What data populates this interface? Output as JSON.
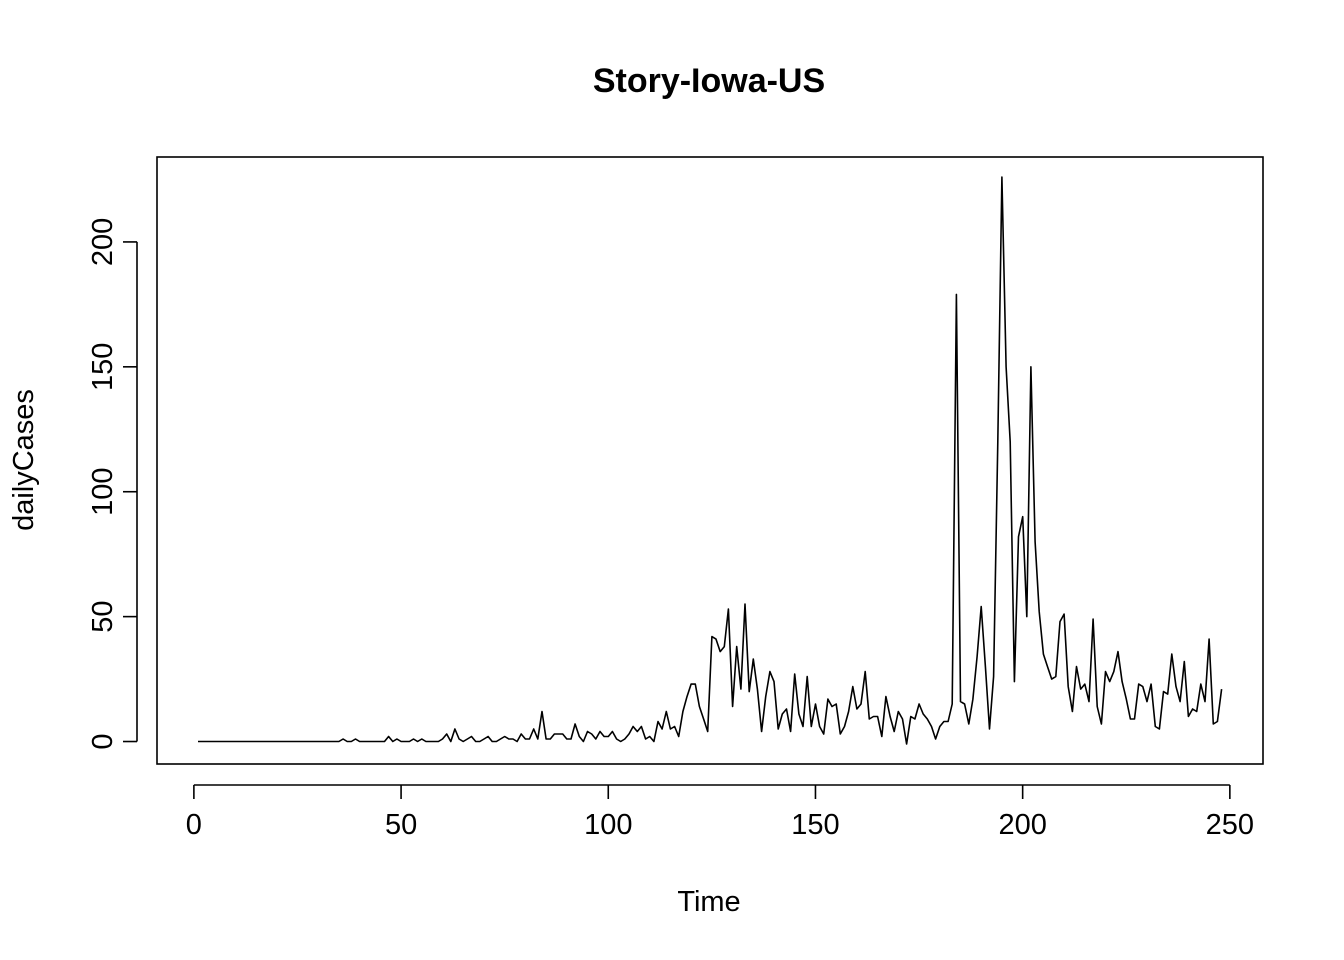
{
  "chart_data": {
    "type": "line",
    "title": "Story-Iowa-US",
    "xlabel": "Time",
    "ylabel": "dailyCases",
    "xlim": [
      -8.9,
      258
    ],
    "ylim": [
      -9,
      234
    ],
    "xticks": [
      0,
      50,
      100,
      150,
      200,
      250
    ],
    "yticks": [
      0,
      50,
      100,
      150,
      200
    ],
    "grid": false,
    "legend": "none",
    "series": [
      {
        "color": "#000000",
        "x": [
          1,
          2,
          3,
          4,
          5,
          6,
          7,
          8,
          9,
          10,
          11,
          12,
          13,
          14,
          15,
          16,
          17,
          18,
          19,
          20,
          21,
          22,
          23,
          24,
          25,
          26,
          27,
          28,
          29,
          30,
          31,
          32,
          33,
          34,
          35,
          36,
          37,
          38,
          39,
          40,
          41,
          42,
          43,
          44,
          45,
          46,
          47,
          48,
          49,
          50,
          51,
          52,
          53,
          54,
          55,
          56,
          57,
          58,
          59,
          60,
          61,
          62,
          63,
          64,
          65,
          66,
          67,
          68,
          69,
          70,
          71,
          72,
          73,
          74,
          75,
          76,
          77,
          78,
          79,
          80,
          81,
          82,
          83,
          84,
          85,
          86,
          87,
          88,
          89,
          90,
          91,
          92,
          93,
          94,
          95,
          96,
          97,
          98,
          99,
          100,
          101,
          102,
          103,
          104,
          105,
          106,
          107,
          108,
          109,
          110,
          111,
          112,
          113,
          114,
          115,
          116,
          117,
          118,
          119,
          120,
          121,
          122,
          123,
          124,
          125,
          126,
          127,
          128,
          129,
          130,
          131,
          132,
          133,
          134,
          135,
          136,
          137,
          138,
          139,
          140,
          141,
          142,
          143,
          144,
          145,
          146,
          147,
          148,
          149,
          150,
          151,
          152,
          153,
          154,
          155,
          156,
          157,
          158,
          159,
          160,
          161,
          162,
          163,
          164,
          165,
          166,
          167,
          168,
          169,
          170,
          171,
          172,
          173,
          174,
          175,
          176,
          177,
          178,
          179,
          180,
          181,
          182,
          183,
          184,
          185,
          186,
          187,
          188,
          189,
          190,
          191,
          192,
          193,
          194,
          195,
          196,
          197,
          198,
          199,
          200,
          201,
          202,
          203,
          204,
          205,
          206,
          207,
          208,
          209,
          210,
          211,
          212,
          213,
          214,
          215,
          216,
          217,
          218,
          219,
          220,
          221,
          222,
          223,
          224,
          225,
          226,
          227,
          228,
          229,
          230,
          231,
          232,
          233,
          234,
          235,
          236,
          237,
          238,
          239,
          240,
          241,
          242,
          243,
          244,
          245,
          246,
          247,
          248
        ],
        "values": [
          0,
          0,
          0,
          0,
          0,
          0,
          0,
          0,
          0,
          0,
          0,
          0,
          0,
          0,
          0,
          0,
          0,
          0,
          0,
          0,
          0,
          0,
          0,
          0,
          0,
          0,
          0,
          0,
          0,
          0,
          0,
          0,
          0,
          0,
          0,
          1,
          0,
          0,
          1,
          0,
          0,
          0,
          0,
          0,
          0,
          0,
          2,
          0,
          1,
          0,
          0,
          0,
          1,
          0,
          1,
          0,
          0,
          0,
          0,
          1,
          3,
          0,
          5,
          1,
          0,
          1,
          2,
          0,
          0,
          1,
          2,
          0,
          0,
          1,
          2,
          1,
          1,
          0,
          3,
          1,
          1,
          5,
          1,
          12,
          1,
          1,
          3,
          3,
          3,
          1,
          1,
          7,
          2,
          0,
          4,
          3,
          1,
          4,
          2,
          2,
          4,
          1,
          0,
          1,
          3,
          6,
          4,
          6,
          1,
          2,
          0,
          8,
          5,
          12,
          5,
          6,
          2,
          12,
          18,
          23,
          23,
          14,
          9,
          4,
          42,
          41,
          36,
          38,
          53,
          14,
          38,
          21,
          55,
          20,
          33,
          21,
          4,
          18,
          28,
          24,
          5,
          11,
          13,
          4,
          27,
          11,
          6,
          26,
          6,
          15,
          6,
          3,
          17,
          14,
          15,
          3,
          6,
          12,
          22,
          13,
          15,
          28,
          9,
          10,
          10,
          2,
          18,
          10,
          4,
          12,
          9,
          -1,
          10,
          9,
          15,
          11,
          9,
          6,
          1,
          6,
          8,
          8,
          15,
          179,
          16,
          15,
          7,
          17,
          34,
          54,
          30,
          5,
          26,
          120,
          226,
          150,
          120,
          24,
          82,
          90,
          50,
          150,
          80,
          52,
          35,
          30,
          25,
          26,
          48,
          51,
          22,
          12,
          30,
          21,
          23,
          16,
          49,
          14,
          7,
          28,
          24,
          28,
          36,
          24,
          17,
          9,
          9,
          23,
          22,
          16,
          23,
          6,
          5,
          20,
          19,
          35,
          22,
          16,
          32,
          10,
          13,
          12,
          23,
          16,
          41,
          7,
          8,
          21
        ]
      }
    ]
  }
}
